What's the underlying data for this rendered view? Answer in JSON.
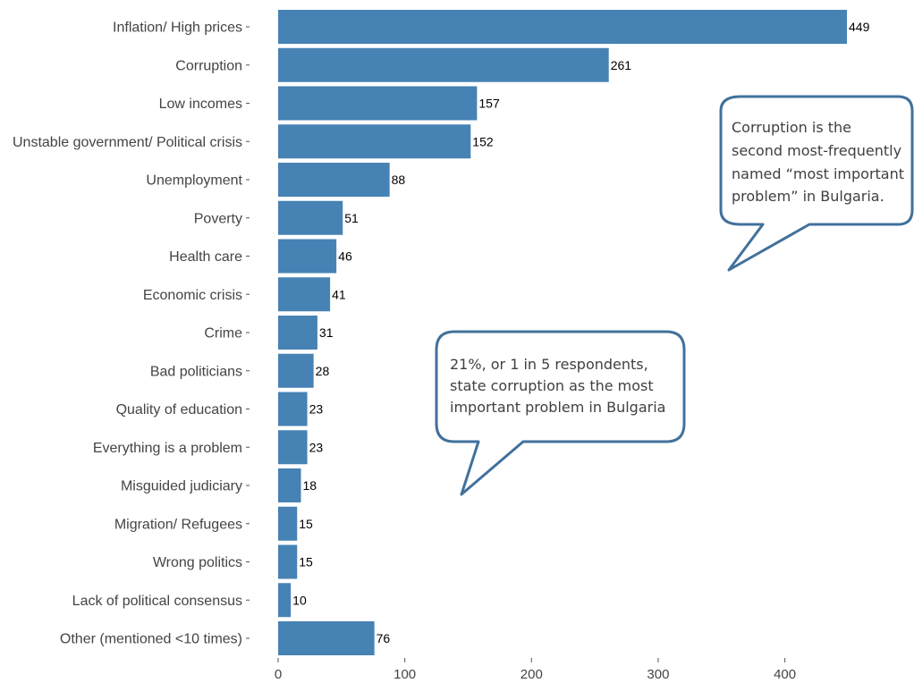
{
  "colors": {
    "bar": "#4682b4",
    "callout_border": "#41719c",
    "axis_text": "#444444"
  },
  "chart_data": {
    "type": "bar",
    "orientation": "horizontal",
    "categories": [
      "Inflation/ High prices",
      "Corruption",
      "Low incomes",
      "Unstable government/ Political crisis",
      "Unemployment",
      "Poverty",
      "Health care",
      "Economic crisis",
      "Crime",
      "Bad politicians",
      "Quality of education",
      "Everything is a problem",
      "Misguided judiciary",
      "Migration/ Refugees",
      "Wrong politics",
      "Lack of political consensus",
      "Other (mentioned <10 times)"
    ],
    "values": [
      449,
      261,
      157,
      152,
      88,
      51,
      46,
      41,
      31,
      28,
      23,
      23,
      18,
      15,
      15,
      10,
      76
    ],
    "xticks": [
      0,
      100,
      200,
      300,
      400
    ],
    "xlim": [
      0,
      449
    ],
    "grid": false
  },
  "callouts": [
    {
      "id": "top-right",
      "lines": [
        "Corruption is the",
        "second most-frequently",
        "named “most important",
        "problem” in Bulgaria."
      ]
    },
    {
      "id": "middle",
      "lines": [
        "21%, or 1 in 5 respondents,",
        "state corruption as the most",
        "important problem in Bulgaria"
      ]
    }
  ]
}
